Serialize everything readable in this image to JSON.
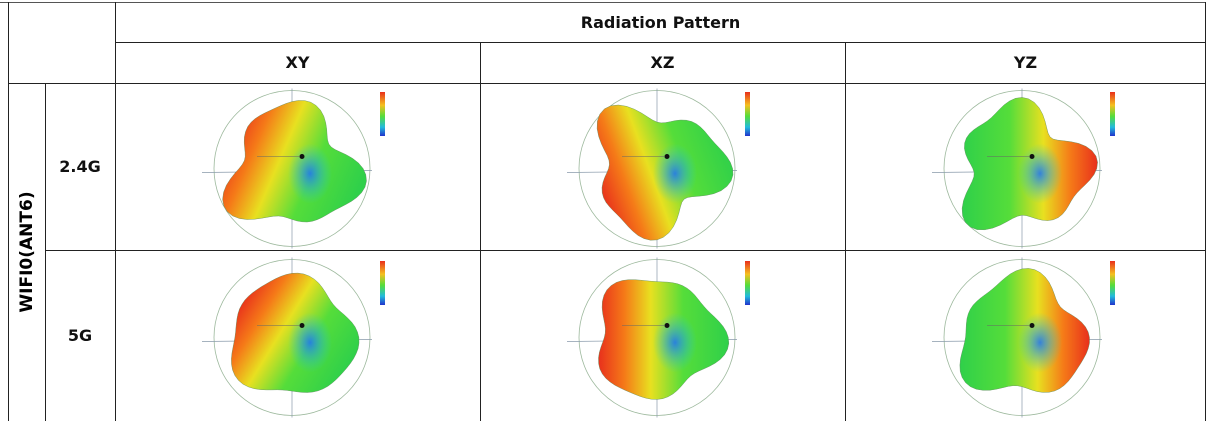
{
  "header": {
    "title": "Radiation Pattern",
    "columns": [
      "XY",
      "XZ",
      "YZ"
    ]
  },
  "group": "WIFI0(ANT6)",
  "rows": [
    {
      "band": "2.4G"
    },
    {
      "band": "5G"
    }
  ]
}
